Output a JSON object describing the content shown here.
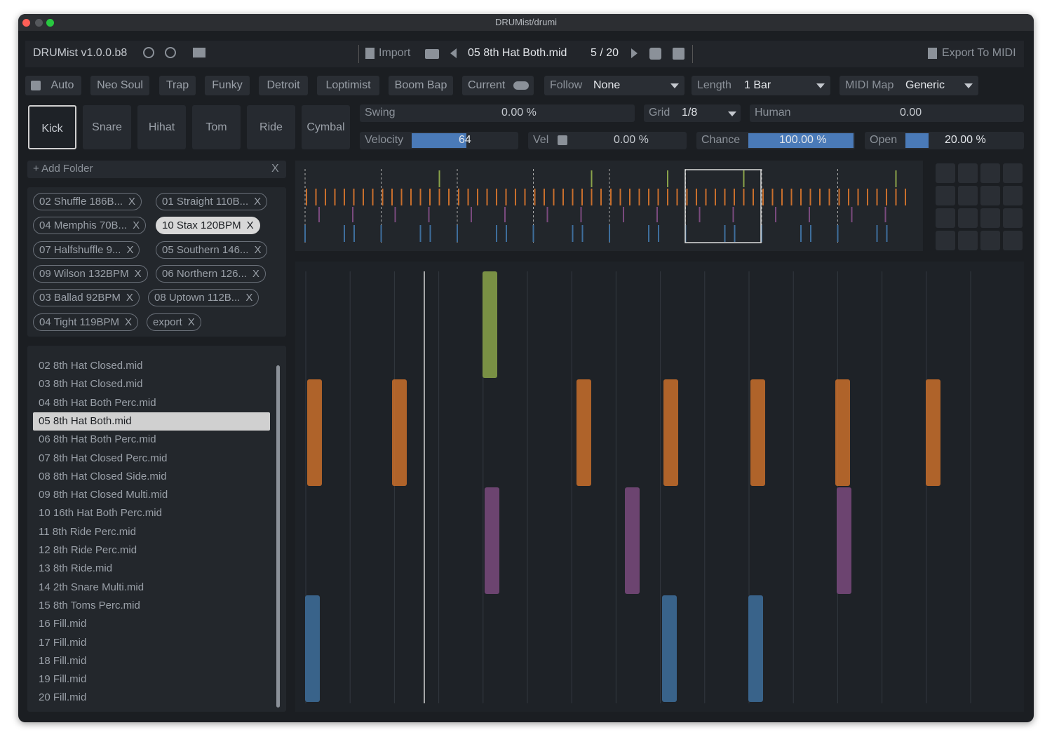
{
  "window": {
    "title": "DRUMist/drumi"
  },
  "toolbar": {
    "app": "DRUMist v1.0.0.b8",
    "import": "Import",
    "file": "05 8th Hat Both.mid",
    "position": "5 / 20",
    "export": "Export To MIDI"
  },
  "styles": [
    "Auto",
    "Neo Soul",
    "Trap",
    "Funky",
    "Detroit",
    "Loptimist",
    "Boom Bap"
  ],
  "current": "Current",
  "follow": {
    "label": "Follow",
    "value": "None"
  },
  "length": {
    "label": "Length",
    "value": "1 Bar"
  },
  "midi_map": {
    "label": "MIDI Map",
    "value": "Generic"
  },
  "instruments": [
    "Kick",
    "Snare",
    "Hihat",
    "Tom",
    "Ride",
    "Cymbal"
  ],
  "params": {
    "swing": {
      "label": "Swing",
      "value": "0.00 %"
    },
    "grid": {
      "label": "Grid",
      "value": "1/8"
    },
    "human": {
      "label": "Human",
      "value": "0.00"
    },
    "velocity": {
      "label": "Velocity",
      "value": "64"
    },
    "vel": {
      "label": "Vel",
      "value": "0.00 %"
    },
    "chance": {
      "label": "Chance",
      "value": "100.00 %"
    },
    "open": {
      "label": "Open",
      "value": "20.00 %"
    }
  },
  "folders": {
    "add": "+ Add Folder",
    "close": "X",
    "tags": [
      [
        "02 Shuffle 186B...",
        "01 Straight 110B..."
      ],
      [
        "04 Memphis 70B...",
        "10 Stax 120BPM"
      ],
      [
        "07 Halfshuffle 9...",
        "05 Southern 146..."
      ],
      [
        "09 Wilson 132BPM",
        "06 Northern 126..."
      ],
      [
        "03 Ballad 92BPM",
        "08 Uptown 112B..."
      ],
      [
        "04 Tight 119BPM",
        "export"
      ]
    ]
  },
  "files": [
    "02 8th Hat Closed.mid",
    "03 8th Hat Closed.mid",
    "04 8th Hat Both Perc.mid",
    "05 8th Hat Both.mid",
    "06 8th Hat Both Perc.mid",
    "07 8th Hat Closed Perc.mid",
    "08 8th Hat Closed Side.mid",
    "09 8th Hat Closed Multi.mid",
    "10 16th Hat Both Perc.mid",
    "11 8th Ride Perc.mid",
    "12 8th Ride Perc.mid",
    "13 8th Ride.mid",
    "14 2th Snare Multi.mid",
    "15 8th Toms Perc.mid",
    "16 Fill.mid",
    "17 Fill.mid",
    "18 Fill.mid",
    "19 Fill.mid",
    "20 Fill.mid"
  ]
}
